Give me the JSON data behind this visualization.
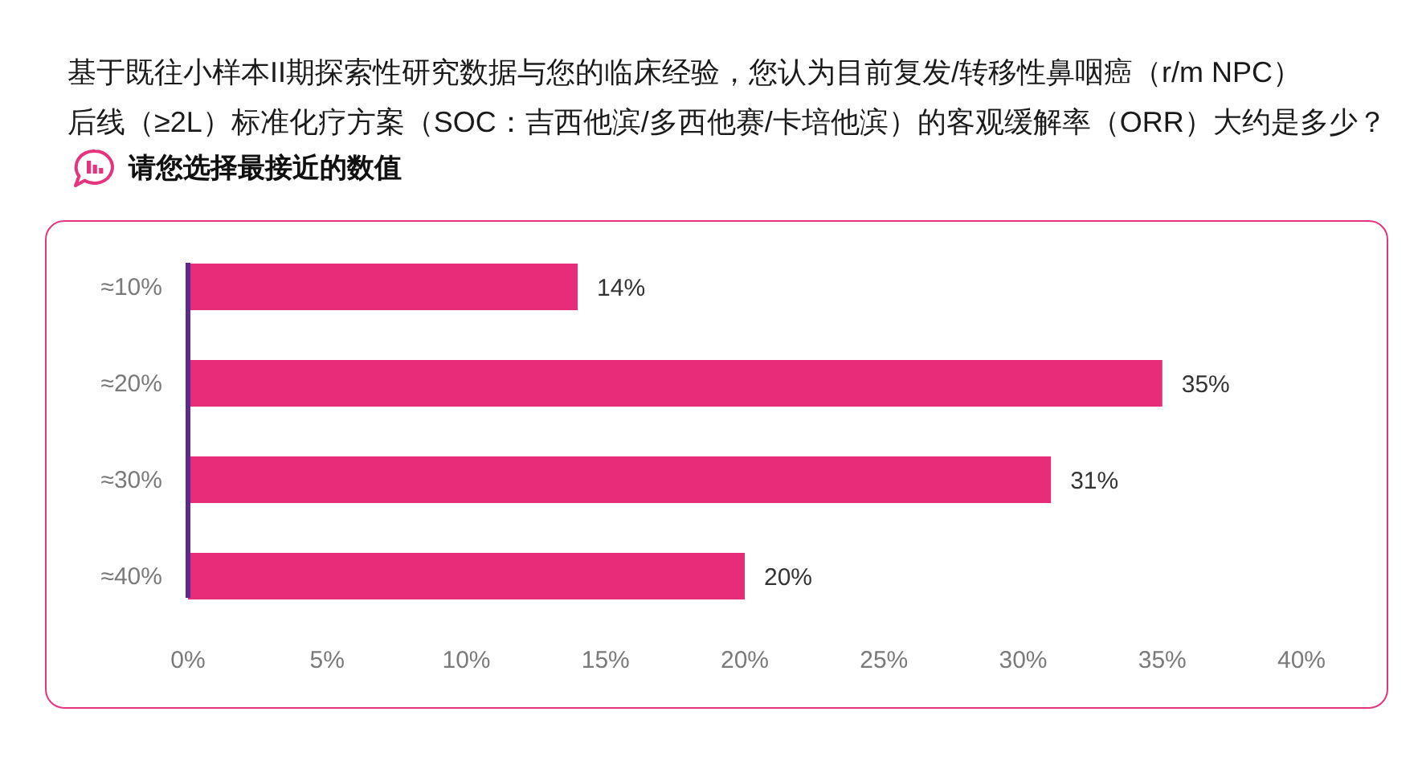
{
  "chart_data": {
    "type": "bar",
    "orientation": "horizontal",
    "title": "基于既往小样本II期探索性研究数据与您的临床经验，您认为目前复发/转移性鼻咽癌（r/m NPC）后线（≥2L）标准化疗方案（SOC：吉西他滨/多西他赛/卡培他滨）的客观缓解率（ORR）大约是多少？",
    "subtitle": "请您选择最接近的数值",
    "categories": [
      "≈10%",
      "≈20%",
      "≈30%",
      "≈40%"
    ],
    "values": [
      14,
      35,
      31,
      20
    ],
    "value_labels": [
      "14%",
      "35%",
      "31%",
      "20%"
    ],
    "color": "#e92c7a",
    "xlim": [
      0,
      40
    ],
    "xticks": [
      {
        "value": 0,
        "label": "0%"
      },
      {
        "value": 5,
        "label": "5%"
      },
      {
        "value": 10,
        "label": "10%"
      },
      {
        "value": 15,
        "label": "15%"
      },
      {
        "value": 20,
        "label": "20%"
      },
      {
        "value": 25,
        "label": "25%"
      },
      {
        "value": 30,
        "label": "30%"
      },
      {
        "value": 35,
        "label": "35%"
      },
      {
        "value": 40,
        "label": "40%"
      }
    ]
  }
}
